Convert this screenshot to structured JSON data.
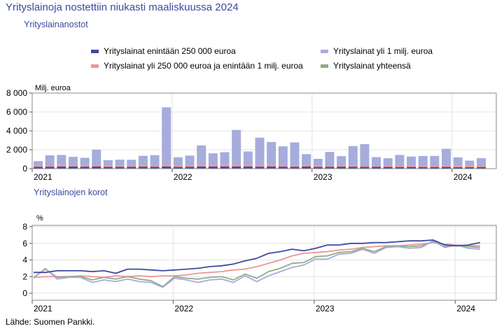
{
  "title": "Yrityslainoja nostettiin niukasti maaliskuussa 2024",
  "source": "Lähde: Suomen Pankki.",
  "colors": {
    "small": "#3f4a9e",
    "medium": "#ee9595",
    "large": "#a6acdc",
    "total": "#8fad86",
    "title": "#3a4a9f",
    "grid": "#e3e3e3"
  },
  "chart_data": [
    {
      "type": "bar",
      "stacked": true,
      "title": "Yrityslainanostot",
      "ylabel": "Milj. euroa",
      "ylim": [
        0,
        8000
      ],
      "yticks": [
        "0",
        "2 000",
        "4 000",
        "6 000",
        "8 000"
      ],
      "year_labels": [
        "2021",
        "2022",
        "2023",
        "2024"
      ],
      "grid": true,
      "legend_position": "top",
      "categories": [
        "2021-01",
        "2021-02",
        "2021-03",
        "2021-04",
        "2021-05",
        "2021-06",
        "2021-07",
        "2021-08",
        "2021-09",
        "2021-10",
        "2021-11",
        "2021-12",
        "2022-01",
        "2022-02",
        "2022-03",
        "2022-04",
        "2022-05",
        "2022-06",
        "2022-07",
        "2022-08",
        "2022-09",
        "2022-10",
        "2022-11",
        "2022-12",
        "2023-01",
        "2023-02",
        "2023-03",
        "2023-04",
        "2023-05",
        "2023-06",
        "2023-07",
        "2023-08",
        "2023-09",
        "2023-10",
        "2023-11",
        "2023-12",
        "2024-01",
        "2024-02",
        "2024-03"
      ],
      "series": [
        {
          "name": "Yrityslainat enintään 250 000 euroa",
          "values": [
            200,
            210,
            220,
            220,
            210,
            220,
            180,
            180,
            200,
            210,
            200,
            230,
            180,
            200,
            230,
            220,
            220,
            230,
            220,
            210,
            220,
            210,
            200,
            220,
            180,
            190,
            210,
            200,
            190,
            190,
            180,
            170,
            180,
            170,
            170,
            180,
            160,
            160,
            170
          ]
        },
        {
          "name": "Yrityslainat yli 250 000 euroa ja enintään 1 milj. euroa",
          "values": [
            180,
            200,
            200,
            190,
            180,
            190,
            160,
            160,
            180,
            190,
            180,
            210,
            170,
            180,
            210,
            200,
            200,
            210,
            200,
            190,
            200,
            190,
            180,
            200,
            170,
            180,
            190,
            190,
            180,
            180,
            170,
            160,
            170,
            160,
            160,
            170,
            150,
            150,
            160
          ]
        },
        {
          "name": "Yrityslainat yli 1 milj. euroa",
          "values": [
            420,
            1000,
            1030,
            840,
            760,
            1600,
            560,
            610,
            560,
            960,
            1050,
            6050,
            860,
            1000,
            2020,
            1200,
            1320,
            3660,
            1400,
            2880,
            2400,
            1960,
            2400,
            1120,
            690,
            1400,
            920,
            2000,
            2230,
            850,
            750,
            1120,
            930,
            1010,
            1020,
            1750,
            890,
            540,
            780
          ]
        }
      ]
    },
    {
      "type": "line",
      "title": "Yrityslainojen korot",
      "ylabel": "%",
      "ylim": [
        0,
        8
      ],
      "yticks": [
        "0",
        "2",
        "4",
        "6",
        "8"
      ],
      "year_labels": [
        "2021",
        "2022",
        "2023",
        "2024"
      ],
      "grid": true,
      "x": [
        "2021-01",
        "2021-02",
        "2021-03",
        "2021-04",
        "2021-05",
        "2021-06",
        "2021-07",
        "2021-08",
        "2021-09",
        "2021-10",
        "2021-11",
        "2021-12",
        "2022-01",
        "2022-02",
        "2022-03",
        "2022-04",
        "2022-05",
        "2022-06",
        "2022-07",
        "2022-08",
        "2022-09",
        "2022-10",
        "2022-11",
        "2022-12",
        "2023-01",
        "2023-02",
        "2023-03",
        "2023-04",
        "2023-05",
        "2023-06",
        "2023-07",
        "2023-08",
        "2023-09",
        "2023-10",
        "2023-11",
        "2023-12",
        "2024-01",
        "2024-02",
        "2024-03"
      ],
      "series": [
        {
          "name": "Yrityslainat enintään 250 000 euroa",
          "values": [
            2.5,
            2.5,
            2.7,
            2.7,
            2.7,
            2.6,
            2.7,
            2.4,
            2.9,
            2.9,
            2.8,
            2.7,
            2.8,
            2.9,
            3.0,
            3.2,
            3.3,
            3.5,
            3.9,
            4.2,
            4.8,
            5.0,
            5.3,
            5.1,
            5.4,
            5.8,
            5.8,
            6.0,
            6.0,
            6.1,
            6.1,
            6.2,
            6.3,
            6.3,
            6.4,
            5.8,
            5.7,
            5.8,
            6.1
          ]
        },
        {
          "name": "Yrityslainat yli 250 000 euroa ja enintään 1 milj. euroa",
          "values": [
            1.9,
            2.0,
            2.0,
            2.0,
            2.1,
            2.0,
            1.9,
            2.1,
            2.0,
            2.1,
            2.0,
            2.1,
            2.1,
            2.2,
            2.4,
            2.5,
            2.6,
            2.8,
            2.9,
            3.2,
            3.6,
            4.0,
            4.5,
            4.8,
            4.9,
            5.0,
            5.2,
            5.3,
            5.5,
            5.6,
            5.7,
            5.7,
            5.8,
            5.9,
            6.1,
            5.9,
            5.8,
            5.7,
            5.7
          ]
        },
        {
          "name": "Yrityslainat yli 1 milj. euroa",
          "values": [
            1.8,
            3.0,
            1.7,
            1.9,
            1.9,
            1.3,
            1.6,
            1.4,
            1.7,
            1.4,
            1.3,
            0.7,
            1.8,
            1.6,
            1.3,
            1.6,
            1.7,
            1.3,
            2.1,
            1.4,
            2.1,
            2.6,
            3.1,
            3.4,
            4.1,
            4.1,
            4.7,
            4.8,
            5.3,
            4.8,
            5.5,
            5.6,
            5.4,
            5.5,
            6.3,
            5.5,
            5.8,
            5.4,
            5.3
          ]
        },
        {
          "name": "Yrityslainat yhteensä",
          "values": [
            1.9,
            2.9,
            1.9,
            2.0,
            2.0,
            1.6,
            1.9,
            1.7,
            2.0,
            1.7,
            1.5,
            0.8,
            2.0,
            1.8,
            1.7,
            1.9,
            2.0,
            1.6,
            2.3,
            1.8,
            2.6,
            3.0,
            3.6,
            3.7,
            4.4,
            4.5,
            4.9,
            5.0,
            5.4,
            5.0,
            5.6,
            5.7,
            5.6,
            5.7,
            6.2,
            5.6,
            5.8,
            5.6,
            5.5
          ]
        }
      ]
    }
  ]
}
